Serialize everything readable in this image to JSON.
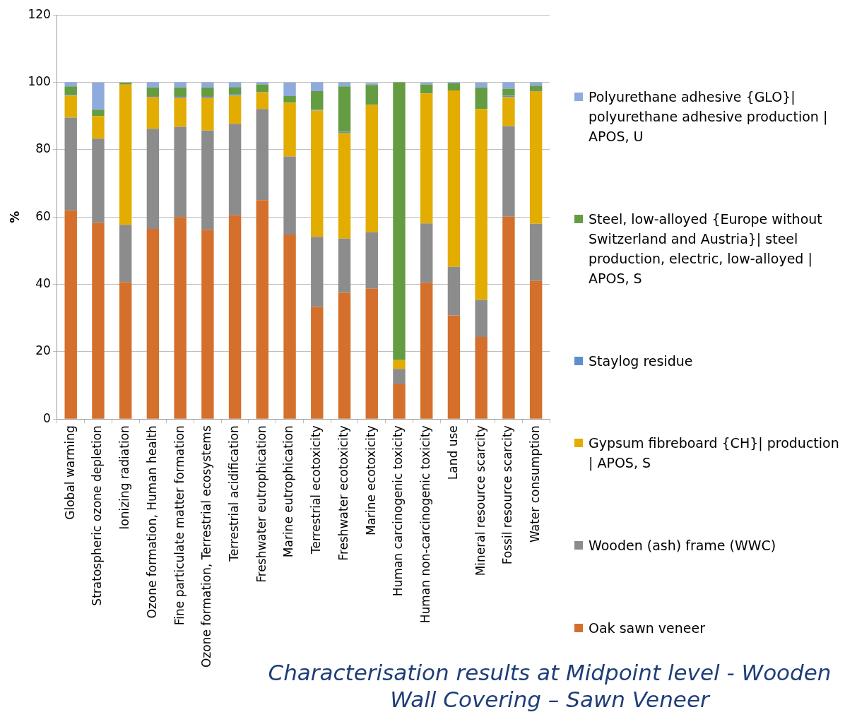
{
  "chart_data": {
    "type": "bar",
    "title": "Characterisation results at Midpoint level - Wooden Wall Covering – Sawn Veneer",
    "ylabel": "%",
    "categories": [
      "Global warming",
      "Stratospheric ozone depletion",
      "Ionizing radiation",
      "Ozone formation, Human health",
      "Fine particulate matter formation",
      "Ozone formation, Terrestrial ecosystems",
      "Terrestrial acidification",
      "Freshwater eutrophication",
      "Marine eutrophication",
      "Terrestrial ecotoxicity",
      "Freshwater ecotoxicity",
      "Marine ecotoxicity",
      "Human carcinogenic toxicity",
      "Human non-carcinogenic toxicity",
      "Land use",
      "Mineral resource scarcity",
      "Fossil resource scarcity",
      "Water consumption"
    ],
    "stacked": true,
    "ylim": [
      0,
      120
    ],
    "yticks": [
      0,
      20,
      40,
      60,
      80,
      100,
      120
    ],
    "grid": "y",
    "legend": "right",
    "series": [
      {
        "name": "Oak sawn veneer",
        "color": "#d4702b",
        "values": [
          62,
          58.3,
          40.7,
          56.5,
          60,
          56.2,
          60.5,
          65,
          54.8,
          33.3,
          37.5,
          38.7,
          10.3,
          40.5,
          30.8,
          24.4,
          60.1,
          41
        ]
      },
      {
        "name": "Wooden (ash) frame (WWC)",
        "color": "#8c8c8c",
        "values": [
          27.5,
          25,
          17,
          29.7,
          26.8,
          29.5,
          27.2,
          27.1,
          23.2,
          20.8,
          16.1,
          16.8,
          4.6,
          17.6,
          14.4,
          11,
          26.9,
          17
        ]
      },
      {
        "name": "Gypsum fibreboard {CH}| production | APOS, S",
        "color": "#e2ac00",
        "values": [
          6.5,
          6.7,
          41.6,
          9.5,
          8.7,
          9.8,
          8.3,
          4.9,
          16,
          37.5,
          31.4,
          37.8,
          2.6,
          38.6,
          52.4,
          56.7,
          8.6,
          39.4
        ]
      },
      {
        "name": "Staylog residue",
        "color": "#5b8fcf",
        "values": [
          0.2,
          null,
          0,
          0.2,
          0.4,
          0.4,
          0.4,
          0.1,
          null,
          0.2,
          0.3,
          null,
          0,
          null,
          0,
          null,
          0.4,
          0.2
        ]
      },
      {
        "name": "Steel, low-alloyed {Europe without Switzerland and Austria}| steel production, electric, low-alloyed | APOS, S",
        "color": "#649c42",
        "values": [
          2.6,
          1.9,
          0.6,
          2.6,
          2.6,
          2.6,
          2.2,
          2.3,
          1.9,
          5.6,
          13.5,
          5.9,
          82.5,
          2.6,
          2.1,
          6.4,
          2.1,
          1.4
        ]
      },
      {
        "name": "Polyurethane adhesive {GLO}| polyurethane adhesive production | APOS, U",
        "color": "#8faadc",
        "values": [
          1.2,
          8,
          null,
          1.5,
          1.5,
          1.5,
          1.4,
          0.6,
          4,
          2.6,
          1.2,
          0.6,
          0,
          0.6,
          0.3,
          1.4,
          1.9,
          1
        ]
      }
    ]
  }
}
